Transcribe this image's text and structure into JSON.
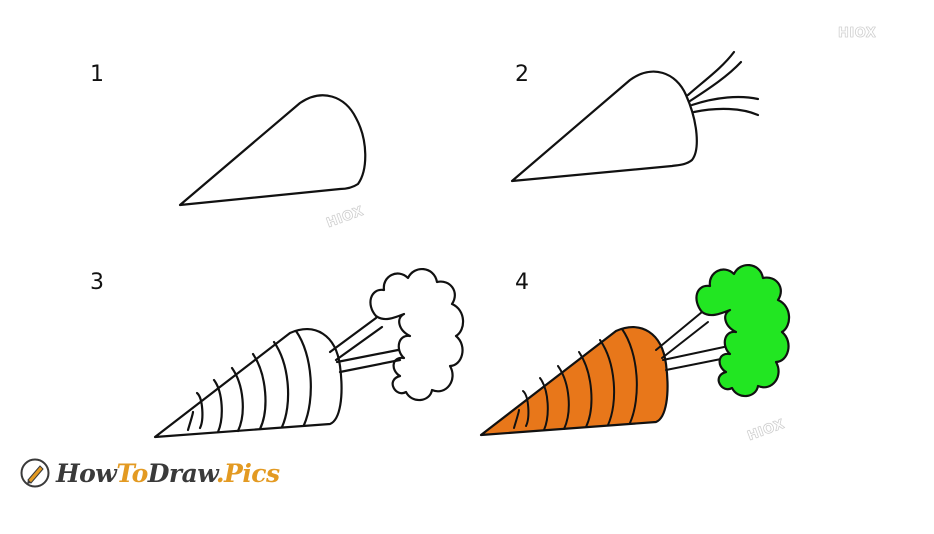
{
  "steps": [
    {
      "number": "1"
    },
    {
      "number": "2"
    },
    {
      "number": "3"
    },
    {
      "number": "4"
    }
  ],
  "watermark": {
    "text": "HIOX"
  },
  "logo": {
    "part_how": "How",
    "part_to": "To",
    "part_draw": "Draw",
    "part_pics": ".Pics",
    "icon": "pencil-icon"
  },
  "colors": {
    "carrot_orange": "#e8771a",
    "leaf_green": "#22e622",
    "outline": "#111111",
    "logo_accent": "#e39a22",
    "logo_dark": "#3a3a3a"
  }
}
